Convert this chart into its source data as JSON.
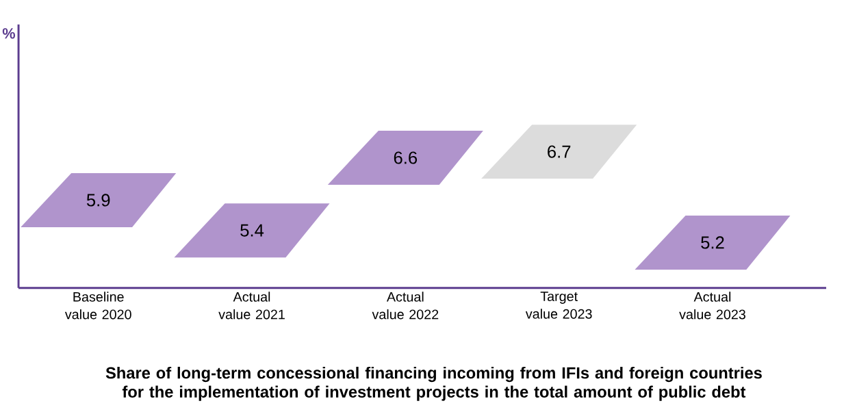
{
  "chart_data": {
    "type": "other",
    "ylabel": "%",
    "title": "Share of long-term concessional financing incoming from IFIs and foreign countries for the implementation of investment projects in the total amount of public debt",
    "categories": [
      "Baseline value 2020",
      "Actual value 2021",
      "Actual value 2022",
      "Target value 2023",
      "Actual value 2023"
    ],
    "values": [
      5.9,
      5.4,
      6.6,
      6.7,
      5.2
    ],
    "colors": [
      "#b094cc",
      "#b094cc",
      "#b094cc",
      "#dcdcdc",
      "#b094cc"
    ],
    "data_labels": true
  }
}
